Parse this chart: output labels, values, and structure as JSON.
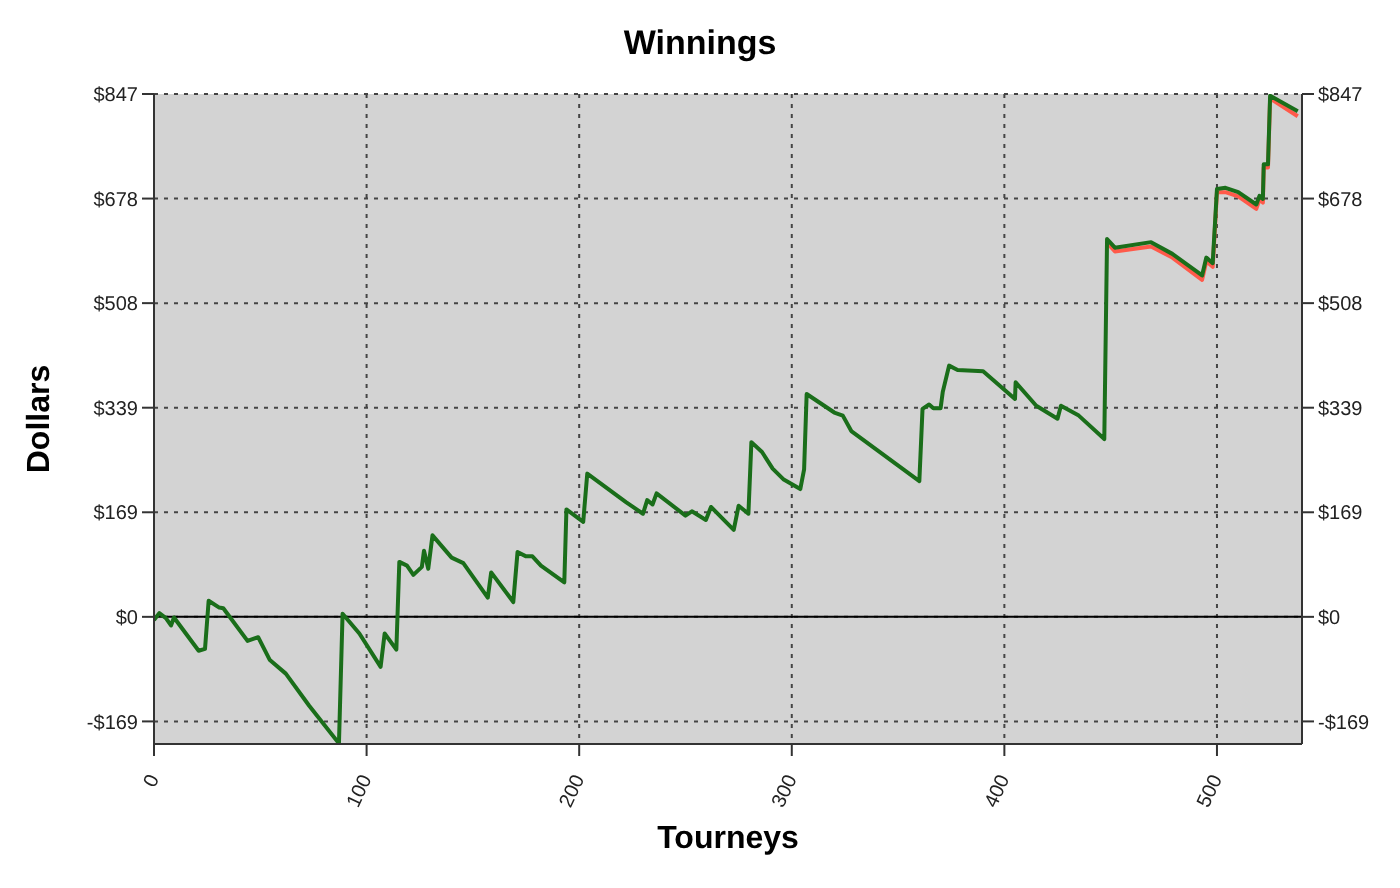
{
  "chart_data": {
    "type": "line",
    "title": "Winnings",
    "xlabel": "Tourneys",
    "ylabel": "Dollars",
    "xlim": [
      0,
      540
    ],
    "xticks": [
      0,
      100,
      200,
      300,
      400,
      500
    ],
    "ylim": [
      -206,
      847
    ],
    "yticks": [
      {
        "value": -169.4,
        "label": "-$169"
      },
      {
        "value": 0,
        "label": "$0"
      },
      {
        "value": 169.4,
        "label": "$169"
      },
      {
        "value": 338.8,
        "label": "$339"
      },
      {
        "value": 508.2,
        "label": "$508"
      },
      {
        "value": 677.6,
        "label": "$678"
      },
      {
        "value": 847,
        "label": "$847"
      }
    ],
    "y2lim": [
      -206,
      847
    ],
    "y2ticks": [
      {
        "value": -169.4,
        "label": "-$169"
      },
      {
        "value": 0,
        "label": "$0"
      },
      {
        "value": 169.4,
        "label": "$169"
      },
      {
        "value": 338.8,
        "label": "$339"
      },
      {
        "value": 508.2,
        "label": "$508"
      },
      {
        "value": 677.6,
        "label": "$678"
      },
      {
        "value": 847,
        "label": "$847"
      }
    ],
    "grid": true,
    "marker": "none",
    "line_style": "solid",
    "ref_lines": [
      {
        "axis": "y",
        "value": 0,
        "color": "#000000"
      }
    ],
    "series": [
      {
        "color": "#ff5a4a",
        "x": [
          448.3,
          452,
          469,
          479,
          493,
          495,
          498,
          500,
          504,
          510,
          518.5,
          520,
          521.6,
          522,
          524,
          525,
          538
        ],
        "values": [
          606,
          592,
          600,
          582,
          546,
          576,
          567,
          688,
          688,
          681,
          661,
          676,
          671,
          728,
          728,
          840,
          811
        ]
      },
      {
        "color": "#1a6e1a",
        "x": [
          0,
          2.5,
          5.6,
          8,
          9.4,
          21,
          24,
          25.7,
          30.7,
          32.6,
          44,
          49,
          54.5,
          62,
          73,
          87,
          88.7,
          96.6,
          106.6,
          108.5,
          114,
          115.4,
          119,
          122,
          126,
          127,
          129,
          131,
          140,
          145.5,
          157,
          158.6,
          169,
          171,
          175,
          178,
          182,
          193,
          194,
          201.9,
          203.8,
          222,
          230,
          232,
          234.5,
          236.4,
          250,
          253,
          259.6,
          262,
          272.7,
          275,
          279.6,
          281,
          286,
          291,
          296,
          304,
          305.8,
          307,
          320,
          324,
          328,
          360,
          361.5,
          364.6,
          366.6,
          370,
          371,
          374,
          378,
          390,
          405,
          405.3,
          415,
          425,
          426.6,
          435,
          447,
          448.3,
          452,
          469,
          479,
          493,
          495,
          498,
          500,
          504,
          510,
          518.5,
          520,
          521.6,
          522,
          524,
          525,
          538
        ],
        "values": [
          -5,
          6,
          -2,
          -14,
          -1,
          -55,
          -52,
          26,
          15,
          14,
          -39,
          -33,
          -70,
          -92,
          -144,
          -205,
          5,
          -27,
          -81,
          -27,
          -53,
          89,
          83,
          68,
          81,
          107,
          78,
          132,
          96,
          87,
          31,
          72,
          24,
          105,
          98,
          98,
          83,
          56,
          174,
          154,
          232,
          186,
          167,
          189,
          182,
          200,
          164,
          171,
          157,
          178,
          141,
          180,
          167,
          283,
          267,
          240,
          223,
          207,
          239,
          361,
          331,
          326,
          301,
          220,
          337,
          344,
          338,
          338,
          364,
          407,
          400,
          398,
          353,
          380,
          342,
          321,
          342,
          326,
          288,
          612,
          598,
          607,
          588,
          553,
          582,
          573,
          693,
          695,
          688,
          668,
          682,
          677,
          733,
          733,
          844,
          819
        ]
      }
    ]
  }
}
